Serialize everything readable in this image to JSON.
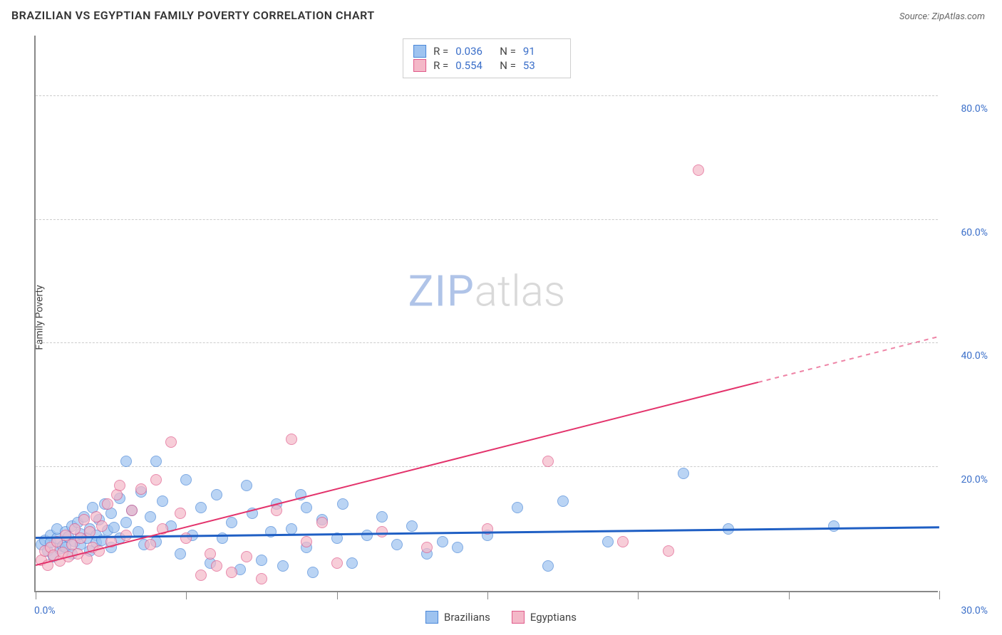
{
  "title": "BRAZILIAN VS EGYPTIAN FAMILY POVERTY CORRELATION CHART",
  "source_prefix": "Source: ",
  "source_name": "ZipAtlas.com",
  "y_axis_label": "Family Poverty",
  "watermark": {
    "zip": "ZIP",
    "atlas": "atlas"
  },
  "chart": {
    "type": "scatter",
    "xlim": [
      0,
      30
    ],
    "ylim": [
      0,
      90
    ],
    "x_ticks": [
      0,
      5,
      10,
      15,
      20,
      25,
      30
    ],
    "x_tick_labels": {
      "0": "0.0%",
      "30": "30.0%"
    },
    "y_grid": [
      20,
      40,
      60,
      80
    ],
    "y_tick_labels": {
      "20": "20.0%",
      "40": "40.0%",
      "60": "60.0%",
      "80": "80.0%"
    },
    "background_color": "#ffffff",
    "grid_color": "#cccccc",
    "axis_color": "#888888",
    "marker_radius": 8,
    "marker_fill_opacity": 0.35,
    "series": [
      {
        "name": "Brazilians",
        "color_fill": "#9ec3f0",
        "color_stroke": "#4a87d8",
        "R": "0.036",
        "N": "91",
        "trend": {
          "y_at_x0": 8.5,
          "y_at_xmax": 10.2,
          "color": "#1f5fc4",
          "width": 2.5,
          "dash_from_x": null
        },
        "points": [
          [
            0.2,
            7.5
          ],
          [
            0.3,
            8.2
          ],
          [
            0.4,
            6.5
          ],
          [
            0.5,
            9.0
          ],
          [
            0.5,
            7.8
          ],
          [
            0.6,
            5.5
          ],
          [
            0.7,
            8.5
          ],
          [
            0.7,
            10.0
          ],
          [
            0.8,
            6.8
          ],
          [
            0.9,
            7.2
          ],
          [
            1.0,
            9.5
          ],
          [
            1.0,
            7.0
          ],
          [
            1.1,
            8.8
          ],
          [
            1.2,
            10.5
          ],
          [
            1.2,
            6.0
          ],
          [
            1.3,
            8.0
          ],
          [
            1.4,
            11.0
          ],
          [
            1.5,
            7.5
          ],
          [
            1.5,
            9.2
          ],
          [
            1.6,
            12.0
          ],
          [
            1.7,
            8.5
          ],
          [
            1.8,
            10.0
          ],
          [
            1.8,
            6.5
          ],
          [
            1.9,
            13.5
          ],
          [
            2.0,
            9.0
          ],
          [
            2.0,
            7.8
          ],
          [
            2.1,
            11.5
          ],
          [
            2.2,
            8.2
          ],
          [
            2.3,
            14.0
          ],
          [
            2.4,
            9.8
          ],
          [
            2.5,
            12.5
          ],
          [
            2.5,
            7.0
          ],
          [
            2.6,
            10.2
          ],
          [
            2.8,
            15.0
          ],
          [
            2.8,
            8.5
          ],
          [
            3.0,
            21.0
          ],
          [
            3.0,
            11.0
          ],
          [
            3.2,
            13.0
          ],
          [
            3.4,
            9.5
          ],
          [
            3.5,
            16.0
          ],
          [
            3.6,
            7.5
          ],
          [
            3.8,
            12.0
          ],
          [
            4.0,
            21.0
          ],
          [
            4.0,
            8.0
          ],
          [
            4.2,
            14.5
          ],
          [
            4.5,
            10.5
          ],
          [
            4.8,
            6.0
          ],
          [
            5.0,
            18.0
          ],
          [
            5.2,
            9.0
          ],
          [
            5.5,
            13.5
          ],
          [
            5.8,
            4.5
          ],
          [
            6.0,
            15.5
          ],
          [
            6.2,
            8.5
          ],
          [
            6.5,
            11.0
          ],
          [
            6.8,
            3.5
          ],
          [
            7.0,
            17.0
          ],
          [
            7.2,
            12.5
          ],
          [
            7.5,
            5.0
          ],
          [
            7.8,
            9.5
          ],
          [
            8.0,
            14.0
          ],
          [
            8.2,
            4.0
          ],
          [
            8.5,
            10.0
          ],
          [
            8.8,
            15.5
          ],
          [
            9.0,
            13.5
          ],
          [
            9.0,
            7.0
          ],
          [
            9.2,
            3.0
          ],
          [
            9.5,
            11.5
          ],
          [
            10.0,
            8.5
          ],
          [
            10.2,
            14.0
          ],
          [
            10.5,
            4.5
          ],
          [
            11.0,
            9.0
          ],
          [
            11.5,
            12.0
          ],
          [
            12.0,
            7.5
          ],
          [
            12.5,
            10.5
          ],
          [
            13.0,
            6.0
          ],
          [
            13.5,
            8.0
          ],
          [
            14.0,
            7.0
          ],
          [
            15.0,
            9.0
          ],
          [
            16.0,
            13.5
          ],
          [
            17.0,
            4.0
          ],
          [
            17.5,
            14.5
          ],
          [
            19.0,
            8.0
          ],
          [
            21.5,
            19.0
          ],
          [
            23.0,
            10.0
          ],
          [
            26.5,
            10.5
          ]
        ]
      },
      {
        "name": "Egyptians",
        "color_fill": "#f4b8c8",
        "color_stroke": "#e05a8a",
        "R": "0.554",
        "N": "53",
        "trend": {
          "y_at_x0": 4.0,
          "y_at_xmax": 41.0,
          "color": "#e3326b",
          "width": 2,
          "dash_from_x": 24
        },
        "points": [
          [
            0.2,
            5.0
          ],
          [
            0.3,
            6.5
          ],
          [
            0.4,
            4.2
          ],
          [
            0.5,
            7.0
          ],
          [
            0.6,
            5.8
          ],
          [
            0.7,
            8.0
          ],
          [
            0.8,
            4.8
          ],
          [
            0.9,
            6.2
          ],
          [
            1.0,
            9.0
          ],
          [
            1.1,
            5.5
          ],
          [
            1.2,
            7.5
          ],
          [
            1.3,
            10.0
          ],
          [
            1.4,
            6.0
          ],
          [
            1.5,
            8.5
          ],
          [
            1.6,
            11.5
          ],
          [
            1.7,
            5.2
          ],
          [
            1.8,
            9.5
          ],
          [
            1.9,
            7.0
          ],
          [
            2.0,
            12.0
          ],
          [
            2.1,
            6.5
          ],
          [
            2.2,
            10.5
          ],
          [
            2.4,
            14.0
          ],
          [
            2.5,
            8.0
          ],
          [
            2.7,
            15.5
          ],
          [
            2.8,
            17.0
          ],
          [
            3.0,
            9.0
          ],
          [
            3.2,
            13.0
          ],
          [
            3.5,
            16.5
          ],
          [
            3.8,
            7.5
          ],
          [
            4.0,
            18.0
          ],
          [
            4.2,
            10.0
          ],
          [
            4.5,
            24.0
          ],
          [
            4.8,
            12.5
          ],
          [
            5.0,
            8.5
          ],
          [
            5.5,
            2.5
          ],
          [
            5.8,
            6.0
          ],
          [
            6.0,
            4.0
          ],
          [
            6.5,
            3.0
          ],
          [
            7.0,
            5.5
          ],
          [
            7.5,
            2.0
          ],
          [
            8.0,
            13.0
          ],
          [
            8.5,
            24.5
          ],
          [
            9.0,
            8.0
          ],
          [
            9.5,
            11.0
          ],
          [
            10.0,
            4.5
          ],
          [
            11.5,
            9.5
          ],
          [
            13.0,
            7.0
          ],
          [
            15.0,
            10.0
          ],
          [
            17.0,
            21.0
          ],
          [
            19.5,
            8.0
          ],
          [
            21.0,
            6.5
          ],
          [
            22.0,
            68.0
          ]
        ]
      }
    ]
  },
  "legend": {
    "items": [
      {
        "label": "Brazilians",
        "swatch_fill": "#9ec3f0",
        "swatch_stroke": "#4a87d8"
      },
      {
        "label": "Egyptians",
        "swatch_fill": "#f4b8c8",
        "swatch_stroke": "#e05a8a"
      }
    ]
  }
}
